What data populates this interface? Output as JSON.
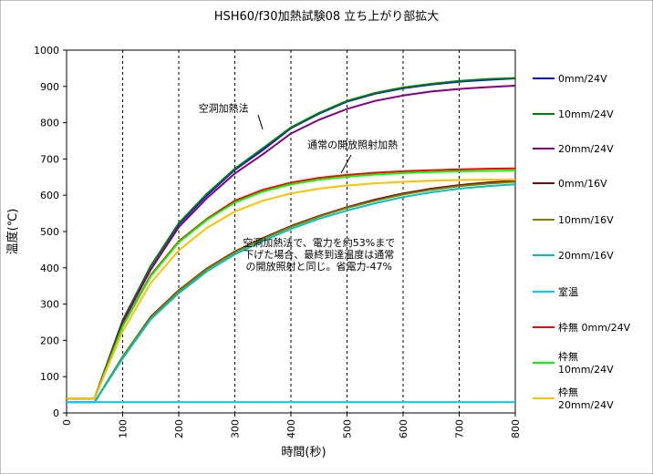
{
  "chart_data": {
    "type": "line",
    "title": "HSH60/f30加熱試験08 立ち上がり部拡大",
    "xlabel": "時間(秒)",
    "ylabel": "温度(℃)",
    "xlim": [
      0,
      800
    ],
    "ylim": [
      0,
      1000
    ],
    "xticks": [
      "0",
      "100",
      "200",
      "300",
      "400",
      "500",
      "600",
      "700",
      "800"
    ],
    "yticks": [
      "0",
      "100",
      "200",
      "300",
      "400",
      "500",
      "600",
      "700",
      "800",
      "900",
      "1000"
    ],
    "grid": "vertical-dashed",
    "legend_position": "right",
    "x": [
      0,
      50,
      100,
      150,
      200,
      250,
      300,
      350,
      400,
      450,
      500,
      550,
      600,
      650,
      700,
      750,
      800
    ],
    "series": [
      {
        "name": "0mm/24V",
        "color": "#0000ff",
        "values": [
          40,
          40,
          255,
          405,
          520,
          600,
          670,
          725,
          785,
          825,
          858,
          880,
          895,
          905,
          913,
          918,
          922
        ]
      },
      {
        "name": "10mm/24V",
        "color": "#008000",
        "values": [
          40,
          40,
          255,
          405,
          523,
          604,
          673,
          730,
          787,
          827,
          860,
          882,
          897,
          907,
          915,
          920,
          923
        ]
      },
      {
        "name": "20mm/24V",
        "color": "#800080",
        "values": [
          40,
          40,
          250,
          395,
          512,
          592,
          660,
          713,
          770,
          808,
          838,
          860,
          875,
          886,
          893,
          898,
          902
        ]
      },
      {
        "name": "0mm/16V",
        "color": "#800000",
        "values": [
          30,
          30,
          155,
          265,
          338,
          398,
          445,
          482,
          515,
          543,
          567,
          588,
          605,
          618,
          628,
          635,
          640
        ]
      },
      {
        "name": "10mm/16V",
        "color": "#808000",
        "values": [
          30,
          30,
          155,
          263,
          336,
          396,
          443,
          480,
          513,
          541,
          565,
          585,
          602,
          615,
          625,
          632,
          637
        ]
      },
      {
        "name": "20mm/16V",
        "color": "#00c0c0",
        "values": [
          30,
          30,
          150,
          258,
          330,
          390,
          437,
          474,
          507,
          535,
          558,
          578,
          595,
          608,
          618,
          625,
          630
        ]
      },
      {
        "name": "室温",
        "color": "#00ccff",
        "values": [
          30,
          30,
          30,
          30,
          30,
          30,
          30,
          30,
          30,
          30,
          30,
          30,
          30,
          30,
          30,
          30,
          30
        ]
      },
      {
        "name": "枠無 0mm/24V",
        "color": "#ff0000",
        "values": [
          40,
          40,
          240,
          380,
          473,
          535,
          585,
          615,
          635,
          648,
          656,
          662,
          666,
          669,
          671,
          673,
          674
        ]
      },
      {
        "name": "枠無 10mm/24V",
        "color": "#00ff00",
        "values": [
          40,
          40,
          238,
          377,
          470,
          532,
          580,
          610,
          630,
          643,
          651,
          657,
          661,
          664,
          666,
          667,
          668
        ]
      },
      {
        "name": "枠無 20mm/24V",
        "color": "#ffc000",
        "values": [
          40,
          40,
          225,
          358,
          448,
          510,
          555,
          585,
          605,
          618,
          627,
          633,
          637,
          640,
          642,
          643,
          643
        ]
      }
    ],
    "annotations": [
      {
        "text": "空洞加熱法",
        "x": 280,
        "y": 830
      },
      {
        "text": "通常の開放照射加熱",
        "x": 510,
        "y": 730
      },
      {
        "text": "空洞加熱法で、電力を約53%まで\n下げた場合、最終到達温度は通常\nの開放照射と同じ。省電力-47%",
        "x": 450,
        "y": 460
      }
    ]
  }
}
